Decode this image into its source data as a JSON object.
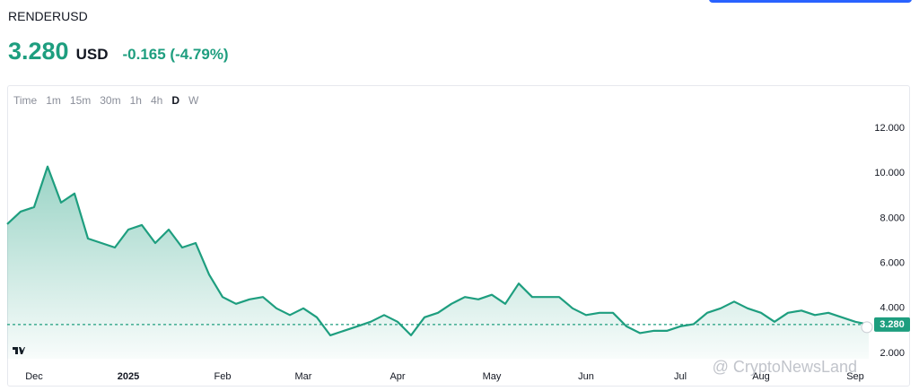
{
  "header": {
    "symbol": "RENDERUSD",
    "price": "3.280",
    "currency": "USD",
    "change": "-0.165 (-4.79%)"
  },
  "toolbar": {
    "intervals": [
      "Time",
      "1m",
      "15m",
      "30m",
      "1h",
      "4h",
      "D",
      "W"
    ],
    "active": "D"
  },
  "watermark": "@ CryptoNewsLand",
  "chart_data": {
    "type": "area",
    "categories": [
      null,
      null,
      "Dec",
      null,
      null,
      null,
      null,
      null,
      null,
      "2025",
      null,
      null,
      null,
      null,
      null,
      null,
      "Feb",
      null,
      null,
      null,
      null,
      null,
      "Mar",
      null,
      null,
      null,
      null,
      null,
      null,
      "Apr",
      null,
      null,
      null,
      null,
      null,
      null,
      "May",
      null,
      null,
      null,
      null,
      null,
      null,
      "Jun",
      null,
      null,
      null,
      null,
      null,
      null,
      "Jul",
      null,
      null,
      null,
      null,
      null,
      "Aug",
      null,
      null,
      null,
      null,
      null,
      null,
      "Sep",
      null
    ],
    "series": [
      {
        "name": "RENDERUSD",
        "color": "#1e9e7f",
        "values": [
          7.74,
          8.3,
          8.5,
          10.3,
          8.7,
          9.1,
          7.1,
          6.9,
          6.7,
          7.5,
          7.7,
          6.9,
          7.5,
          6.7,
          6.9,
          5.5,
          4.5,
          4.2,
          4.4,
          4.5,
          4.0,
          3.7,
          4.0,
          3.6,
          2.8,
          3.0,
          3.2,
          3.4,
          3.7,
          3.4,
          2.8,
          3.6,
          3.8,
          4.2,
          4.5,
          4.4,
          4.6,
          4.2,
          5.1,
          4.5,
          4.5,
          4.5,
          4.0,
          3.7,
          3.8,
          3.8,
          3.2,
          2.9,
          3.0,
          3.0,
          3.2,
          3.3,
          3.8,
          4.0,
          4.3,
          4.0,
          3.8,
          3.4,
          3.8,
          3.9,
          3.7,
          3.8,
          3.6,
          3.4,
          3.28
        ]
      }
    ],
    "price_line": {
      "value": 3.28,
      "label": "3.280"
    },
    "ylim": [
      1.76,
      12.52
    ],
    "yticks": [
      {
        "value": 2,
        "label": "2.000"
      },
      {
        "value": 4,
        "label": "4.000"
      },
      {
        "value": 6,
        "label": "6.000"
      },
      {
        "value": 8,
        "label": "8.000"
      },
      {
        "value": 10,
        "label": "10.000"
      },
      {
        "value": 12,
        "label": "12.000"
      }
    ],
    "grid": false
  }
}
